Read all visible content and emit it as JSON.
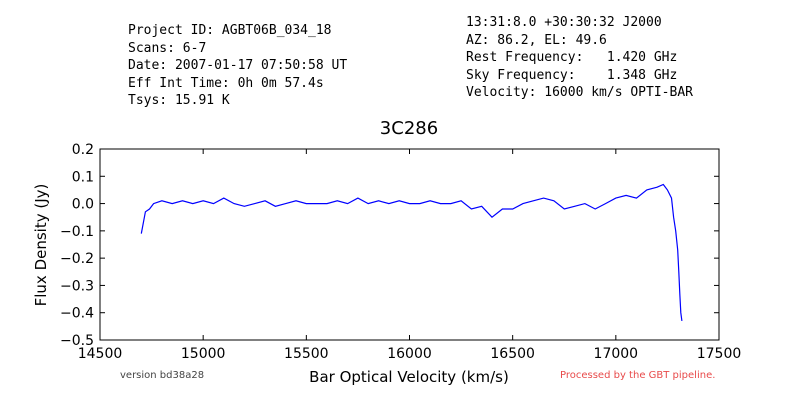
{
  "header": {
    "left": [
      "Project ID: AGBT06B_034_18",
      "Scans: 6-7",
      "Date: 2007-01-17 07:50:58 UT",
      "Eff Int Time: 0h 0m 57.4s",
      "Tsys: 15.91 K"
    ],
    "right": [
      "13:31:8.0 +30:30:32 J2000",
      "AZ: 86.2, EL: 49.6",
      "Rest Frequency:   1.420 GHz",
      "Sky Frequency:    1.348 GHz",
      "Velocity: 16000 km/s OPTI-BAR"
    ]
  },
  "footer": {
    "version": "version bd38a28",
    "processed": "Processed by the GBT pipeline."
  },
  "colors": {
    "series": "#0000ff",
    "processed": "#e84a4a"
  },
  "chart_data": {
    "type": "line",
    "title": "3C286",
    "xlabel": "Bar Optical Velocity (km/s)",
    "ylabel": "Flux Density (Jy)",
    "xlim": [
      14500,
      17500
    ],
    "ylim": [
      -0.5,
      0.2
    ],
    "xticks": [
      "14500",
      "15000",
      "15500",
      "16000",
      "16500",
      "17000",
      "17500"
    ],
    "yticks": [
      "0.2",
      "0.1",
      "0.0",
      "−0.1",
      "−0.2",
      "−0.3",
      "−0.4",
      "−0.5"
    ],
    "grid": false,
    "legend": "none",
    "series": [
      {
        "x": [
          14700,
          14720,
          14740,
          14760,
          14800,
          14850,
          14900,
          14950,
          15000,
          15050,
          15100,
          15150,
          15200,
          15250,
          15300,
          15350,
          15400,
          15450,
          15500,
          15550,
          15600,
          15650,
          15700,
          15750,
          15800,
          15850,
          15900,
          15950,
          16000,
          16050,
          16100,
          16150,
          16200,
          16250,
          16300,
          16350,
          16400,
          16450,
          16500,
          16550,
          16600,
          16650,
          16700,
          16750,
          16800,
          16850,
          16900,
          16950,
          17000,
          17050,
          17100,
          17150,
          17200,
          17230,
          17250,
          17270,
          17280,
          17290,
          17300,
          17305,
          17310,
          17315,
          17320
        ],
        "y": [
          -0.11,
          -0.03,
          -0.02,
          0.0,
          0.01,
          0.0,
          0.01,
          0.0,
          0.01,
          0.0,
          0.02,
          0.0,
          -0.01,
          0.0,
          0.01,
          -0.01,
          0.0,
          0.01,
          0.0,
          0.0,
          0.0,
          0.01,
          0.0,
          0.02,
          0.0,
          0.01,
          0.0,
          0.01,
          0.0,
          0.0,
          0.01,
          0.0,
          0.0,
          0.01,
          -0.02,
          -0.01,
          -0.05,
          -0.02,
          -0.02,
          0.0,
          0.01,
          0.02,
          0.01,
          -0.02,
          -0.01,
          0.0,
          -0.02,
          0.0,
          0.02,
          0.03,
          0.02,
          0.05,
          0.06,
          0.07,
          0.05,
          0.02,
          -0.05,
          -0.1,
          -0.17,
          -0.25,
          -0.33,
          -0.4,
          -0.43
        ]
      }
    ]
  }
}
